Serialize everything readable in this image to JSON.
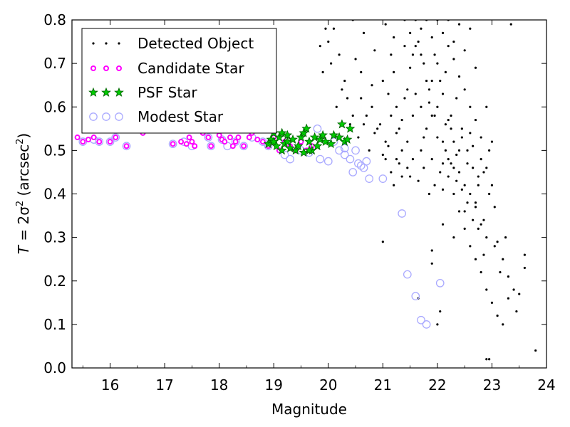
{
  "chart_data": {
    "type": "scatter",
    "xlabel": "Magnitude",
    "ylabel_prefix": "T",
    "ylabel_mid": " = 2σ",
    "ylabel_unit": " (arcsec",
    "ylabel_close": ")",
    "ylabel_sup": "2",
    "xlim": [
      15.3,
      24.0
    ],
    "ylim": [
      0.0,
      0.8
    ],
    "x_ticks": [
      "16",
      "17",
      "18",
      "19",
      "20",
      "21",
      "22",
      "23",
      "24"
    ],
    "y_ticks": [
      "0.0",
      "0.1",
      "0.2",
      "0.3",
      "0.4",
      "0.5",
      "0.6",
      "0.7",
      "0.8"
    ],
    "grid": false,
    "legend_position": "upper-left",
    "colors": {
      "detected": "#000000",
      "candidate_edge": "#ff00ff",
      "candidate_fill": "#ffffff",
      "psf_fill": "#00cc00",
      "psf_edge": "#006400",
      "modest_edge": "#aaaaff"
    },
    "series": [
      {
        "name": "Detected Object",
        "marker": "dot",
        "points": [
          [
            21.0,
            0.29
          ],
          [
            21.0,
            0.49
          ],
          [
            21.05,
            0.48
          ],
          [
            21.1,
            0.51
          ],
          [
            21.2,
            0.42
          ],
          [
            21.3,
            0.55
          ],
          [
            21.4,
            0.62
          ],
          [
            21.5,
            0.69
          ],
          [
            21.6,
            0.74
          ],
          [
            21.7,
            0.78
          ],
          [
            21.8,
            0.66
          ],
          [
            21.9,
            0.58
          ],
          [
            22.0,
            0.53
          ],
          [
            22.1,
            0.47
          ],
          [
            22.2,
            0.44
          ],
          [
            22.3,
            0.4
          ],
          [
            22.4,
            0.36
          ],
          [
            22.5,
            0.32
          ],
          [
            22.6,
            0.28
          ],
          [
            22.7,
            0.25
          ],
          [
            22.8,
            0.22
          ],
          [
            22.9,
            0.18
          ],
          [
            23.0,
            0.15
          ],
          [
            23.1,
            0.12
          ],
          [
            23.2,
            0.1
          ],
          [
            23.3,
            0.21
          ],
          [
            23.4,
            0.18
          ],
          [
            23.5,
            0.17
          ],
          [
            23.6,
            0.26
          ],
          [
            23.8,
            0.04
          ],
          [
            23.35,
            0.79
          ],
          [
            22.95,
            0.02
          ],
          [
            22.9,
            0.02
          ],
          [
            21.9,
            0.24
          ],
          [
            22.0,
            0.1
          ],
          [
            22.05,
            0.13
          ],
          [
            21.65,
            0.16
          ],
          [
            21.9,
            0.27
          ],
          [
            22.1,
            0.33
          ],
          [
            22.3,
            0.3
          ],
          [
            22.5,
            0.36
          ],
          [
            22.7,
            0.37
          ],
          [
            22.85,
            0.34
          ],
          [
            23.05,
            0.37
          ],
          [
            23.25,
            0.3
          ],
          [
            20.0,
            0.75
          ],
          [
            20.1,
            0.78
          ],
          [
            20.3,
            0.66
          ],
          [
            20.5,
            0.71
          ],
          [
            20.6,
            0.62
          ],
          [
            20.7,
            0.58
          ],
          [
            20.8,
            0.65
          ],
          [
            20.9,
            0.55
          ],
          [
            19.9,
            0.68
          ],
          [
            20.15,
            0.6
          ],
          [
            20.4,
            0.56
          ],
          [
            20.55,
            0.53
          ],
          [
            20.75,
            0.5
          ],
          [
            21.0,
            0.66
          ],
          [
            21.15,
            0.72
          ],
          [
            21.25,
            0.6
          ],
          [
            21.35,
            0.57
          ],
          [
            21.45,
            0.64
          ],
          [
            21.55,
            0.72
          ],
          [
            21.65,
            0.75
          ],
          [
            21.75,
            0.7
          ],
          [
            21.85,
            0.61
          ],
          [
            21.95,
            0.72
          ],
          [
            22.05,
            0.66
          ],
          [
            22.15,
            0.68
          ],
          [
            22.25,
            0.58
          ],
          [
            22.35,
            0.62
          ],
          [
            22.45,
            0.55
          ],
          [
            22.55,
            0.5
          ],
          [
            22.65,
            0.46
          ],
          [
            22.75,
            0.42
          ],
          [
            22.85,
            0.45
          ],
          [
            22.95,
            0.5
          ],
          [
            23.0,
            0.52
          ],
          [
            21.2,
            0.68
          ],
          [
            21.6,
            0.63
          ],
          [
            21.8,
            0.55
          ],
          [
            22.0,
            0.6
          ],
          [
            22.2,
            0.57
          ],
          [
            22.4,
            0.5
          ],
          [
            22.6,
            0.54
          ],
          [
            22.8,
            0.48
          ],
          [
            21.3,
            0.47
          ],
          [
            21.5,
            0.44
          ],
          [
            21.7,
            0.5
          ],
          [
            21.9,
            0.48
          ],
          [
            22.1,
            0.41
          ],
          [
            22.3,
            0.46
          ],
          [
            22.5,
            0.42
          ],
          [
            22.7,
            0.38
          ],
          [
            21.4,
            0.8
          ],
          [
            21.6,
            0.8
          ],
          [
            21.8,
            0.8
          ],
          [
            22.0,
            0.8
          ],
          [
            22.2,
            0.8
          ],
          [
            22.4,
            0.79
          ],
          [
            22.6,
            0.78
          ],
          [
            20.2,
            0.72
          ],
          [
            20.45,
            0.8
          ],
          [
            20.65,
            0.77
          ],
          [
            20.85,
            0.73
          ],
          [
            21.05,
            0.79
          ],
          [
            20.35,
            0.62
          ],
          [
            20.6,
            0.68
          ],
          [
            20.8,
            0.6
          ],
          [
            22.1,
            0.52
          ],
          [
            22.2,
            0.48
          ],
          [
            22.3,
            0.52
          ],
          [
            22.4,
            0.45
          ],
          [
            22.6,
            0.4
          ],
          [
            22.8,
            0.33
          ],
          [
            22.9,
            0.3
          ],
          [
            23.1,
            0.29
          ],
          [
            23.2,
            0.25
          ],
          [
            21.9,
            0.66
          ],
          [
            22.0,
            0.7
          ],
          [
            22.1,
            0.63
          ],
          [
            22.2,
            0.74
          ],
          [
            22.3,
            0.71
          ],
          [
            22.4,
            0.67
          ],
          [
            22.5,
            0.64
          ],
          [
            22.6,
            0.6
          ],
          [
            22.7,
            0.57
          ],
          [
            22.8,
            0.53
          ],
          [
            22.9,
            0.46
          ],
          [
            21.55,
            0.58
          ],
          [
            21.7,
            0.6
          ],
          [
            21.85,
            0.64
          ],
          [
            21.95,
            0.58
          ],
          [
            22.15,
            0.56
          ],
          [
            22.35,
            0.49
          ],
          [
            22.55,
            0.47
          ],
          [
            22.75,
            0.44
          ],
          [
            22.65,
            0.51
          ],
          [
            22.45,
            0.53
          ],
          [
            22.25,
            0.55
          ],
          [
            21.75,
            0.53
          ],
          [
            21.45,
            0.52
          ],
          [
            21.35,
            0.5
          ],
          [
            21.25,
            0.54
          ],
          [
            21.15,
            0.58
          ],
          [
            21.1,
            0.63
          ],
          [
            21.2,
            0.76
          ],
          [
            21.4,
            0.74
          ],
          [
            21.5,
            0.77
          ],
          [
            21.7,
            0.72
          ],
          [
            21.9,
            0.76
          ],
          [
            22.1,
            0.77
          ],
          [
            22.3,
            0.75
          ],
          [
            22.5,
            0.73
          ],
          [
            22.7,
            0.69
          ],
          [
            22.9,
            0.6
          ],
          [
            23.0,
            0.42
          ],
          [
            22.95,
            0.4
          ],
          [
            23.05,
            0.28
          ],
          [
            23.15,
            0.22
          ],
          [
            23.3,
            0.16
          ],
          [
            23.45,
            0.13
          ],
          [
            23.6,
            0.23
          ],
          [
            22.85,
            0.26
          ],
          [
            22.75,
            0.32
          ],
          [
            22.65,
            0.34
          ],
          [
            22.55,
            0.38
          ],
          [
            22.45,
            0.41
          ],
          [
            22.35,
            0.43
          ],
          [
            22.25,
            0.47
          ],
          [
            22.15,
            0.5
          ],
          [
            22.05,
            0.45
          ],
          [
            21.95,
            0.42
          ],
          [
            21.85,
            0.4
          ],
          [
            21.75,
            0.46
          ],
          [
            21.65,
            0.43
          ],
          [
            21.55,
            0.48
          ],
          [
            21.45,
            0.46
          ],
          [
            21.35,
            0.44
          ],
          [
            21.25,
            0.48
          ],
          [
            21.15,
            0.45
          ],
          [
            21.05,
            0.52
          ],
          [
            20.95,
            0.56
          ],
          [
            20.85,
            0.54
          ],
          [
            20.65,
            0.56
          ],
          [
            20.45,
            0.58
          ],
          [
            20.25,
            0.64
          ],
          [
            20.05,
            0.7
          ],
          [
            19.95,
            0.78
          ],
          [
            19.85,
            0.74
          ]
        ]
      },
      {
        "name": "Candidate Star",
        "marker": "circle-small",
        "points": [
          [
            15.4,
            0.53
          ],
          [
            15.5,
            0.52
          ],
          [
            15.6,
            0.525
          ],
          [
            15.7,
            0.53
          ],
          [
            15.8,
            0.52
          ],
          [
            16.0,
            0.52
          ],
          [
            16.1,
            0.53
          ],
          [
            16.3,
            0.51
          ],
          [
            16.6,
            0.54
          ],
          [
            17.15,
            0.515
          ],
          [
            17.3,
            0.52
          ],
          [
            17.4,
            0.515
          ],
          [
            17.45,
            0.53
          ],
          [
            17.5,
            0.52
          ],
          [
            17.55,
            0.51
          ],
          [
            17.7,
            0.54
          ],
          [
            17.8,
            0.53
          ],
          [
            17.85,
            0.51
          ],
          [
            18.0,
            0.535
          ],
          [
            18.05,
            0.525
          ],
          [
            18.1,
            0.52
          ],
          [
            18.2,
            0.53
          ],
          [
            18.25,
            0.51
          ],
          [
            18.3,
            0.52
          ],
          [
            18.35,
            0.53
          ],
          [
            18.45,
            0.51
          ],
          [
            18.55,
            0.53
          ],
          [
            18.6,
            0.54
          ],
          [
            18.7,
            0.525
          ],
          [
            18.8,
            0.52
          ],
          [
            18.9,
            0.51
          ],
          [
            19.0,
            0.53
          ],
          [
            19.1,
            0.5
          ],
          [
            19.2,
            0.52
          ],
          [
            19.3,
            0.51
          ],
          [
            19.4,
            0.5
          ],
          [
            19.5,
            0.52
          ],
          [
            19.6,
            0.5
          ],
          [
            19.7,
            0.51
          ]
        ]
      },
      {
        "name": "PSF Star",
        "marker": "star",
        "points": [
          [
            18.9,
            0.515
          ],
          [
            18.95,
            0.525
          ],
          [
            19.0,
            0.52
          ],
          [
            19.05,
            0.51
          ],
          [
            19.1,
            0.53
          ],
          [
            19.15,
            0.5
          ],
          [
            19.2,
            0.515
          ],
          [
            19.25,
            0.52
          ],
          [
            19.3,
            0.505
          ],
          [
            19.35,
            0.525
          ],
          [
            19.4,
            0.5
          ],
          [
            19.45,
            0.51
          ],
          [
            19.5,
            0.53
          ],
          [
            19.55,
            0.54
          ],
          [
            19.6,
            0.55
          ],
          [
            19.65,
            0.52
          ],
          [
            19.7,
            0.5
          ],
          [
            19.75,
            0.53
          ],
          [
            19.8,
            0.51
          ],
          [
            19.85,
            0.525
          ],
          [
            19.9,
            0.535
          ],
          [
            19.95,
            0.52
          ],
          [
            20.05,
            0.515
          ],
          [
            20.1,
            0.535
          ],
          [
            20.2,
            0.53
          ],
          [
            20.25,
            0.56
          ],
          [
            20.3,
            0.52
          ],
          [
            20.35,
            0.525
          ],
          [
            20.4,
            0.55
          ],
          [
            19.0,
            0.54
          ],
          [
            19.15,
            0.54
          ],
          [
            19.25,
            0.535
          ],
          [
            19.55,
            0.495
          ],
          [
            19.65,
            0.5
          ]
        ]
      },
      {
        "name": "Modest Star",
        "marker": "circle-large",
        "points": [
          [
            15.5,
            0.52
          ],
          [
            15.7,
            0.525
          ],
          [
            15.8,
            0.52
          ],
          [
            16.0,
            0.52
          ],
          [
            16.1,
            0.53
          ],
          [
            16.3,
            0.51
          ],
          [
            17.15,
            0.515
          ],
          [
            17.35,
            0.52
          ],
          [
            17.5,
            0.51
          ],
          [
            17.8,
            0.53
          ],
          [
            17.85,
            0.51
          ],
          [
            18.05,
            0.525
          ],
          [
            18.15,
            0.51
          ],
          [
            18.3,
            0.52
          ],
          [
            18.45,
            0.51
          ],
          [
            18.6,
            0.53
          ],
          [
            18.8,
            0.52
          ],
          [
            18.9,
            0.51
          ],
          [
            19.2,
            0.49
          ],
          [
            19.3,
            0.48
          ],
          [
            19.5,
            0.5
          ],
          [
            19.65,
            0.495
          ],
          [
            19.8,
            0.55
          ],
          [
            19.85,
            0.48
          ],
          [
            20.0,
            0.475
          ],
          [
            20.1,
            0.52
          ],
          [
            20.2,
            0.5
          ],
          [
            20.3,
            0.49
          ],
          [
            20.4,
            0.48
          ],
          [
            20.45,
            0.45
          ],
          [
            20.55,
            0.47
          ],
          [
            20.6,
            0.465
          ],
          [
            20.65,
            0.46
          ],
          [
            20.7,
            0.475
          ],
          [
            20.75,
            0.435
          ],
          [
            21.0,
            0.435
          ],
          [
            21.35,
            0.355
          ],
          [
            21.45,
            0.215
          ],
          [
            21.6,
            0.165
          ],
          [
            21.7,
            0.11
          ],
          [
            21.8,
            0.1
          ],
          [
            22.05,
            0.195
          ],
          [
            20.3,
            0.505
          ],
          [
            20.5,
            0.5
          ]
        ]
      }
    ]
  }
}
